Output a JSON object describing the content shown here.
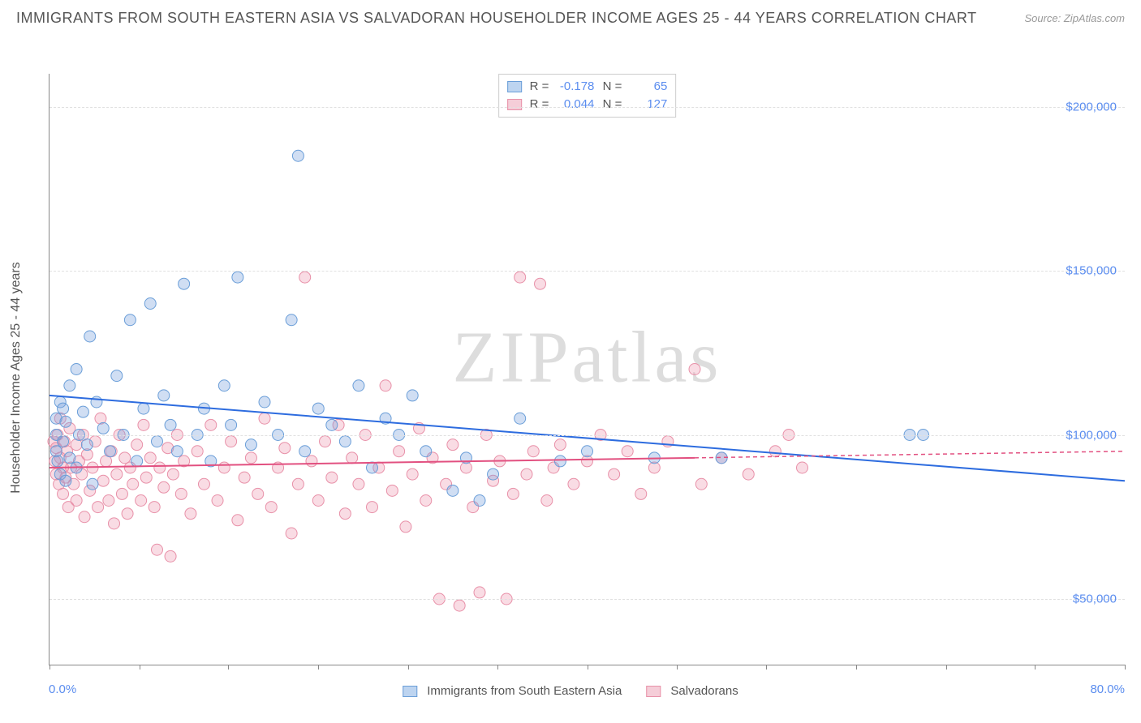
{
  "title": "IMMIGRANTS FROM SOUTH EASTERN ASIA VS SALVADORAN HOUSEHOLDER INCOME AGES 25 - 44 YEARS CORRELATION CHART",
  "source": "Source: ZipAtlas.com",
  "yaxis_title": "Householder Income Ages 25 - 44 years",
  "watermark": "ZIPatlas",
  "chart": {
    "type": "scatter",
    "xlim": [
      0,
      80
    ],
    "ylim": [
      30000,
      210000
    ],
    "x_left_label": "0.0%",
    "x_right_label": "80.0%",
    "ytick_values": [
      50000,
      100000,
      150000,
      200000
    ],
    "ytick_labels": [
      "$50,000",
      "$100,000",
      "$150,000",
      "$200,000"
    ],
    "xtick_positions": [
      0,
      6.7,
      13.3,
      20,
      26.7,
      33.3,
      40,
      46.7,
      53.3,
      60,
      66.7,
      73.3,
      80
    ],
    "grid_color": "#e0e0e0",
    "background_color": "#ffffff",
    "series": [
      {
        "name": "Immigrants from South Eastern Asia",
        "color_fill": "rgba(120,160,220,0.35)",
        "color_stroke": "#6a9ed8",
        "swatch_fill": "#bdd4f0",
        "swatch_border": "#6a9ed8",
        "marker_radius": 7,
        "R": "-0.178",
        "N": "65",
        "regression": {
          "x1": 0,
          "y1": 112000,
          "x2": 80,
          "y2": 86000,
          "color": "#2d6cdf",
          "width": 2
        },
        "points": [
          [
            0.5,
            100000
          ],
          [
            0.5,
            95000
          ],
          [
            0.5,
            105000
          ],
          [
            0.6,
            92000
          ],
          [
            0.8,
            110000
          ],
          [
            0.8,
            88000
          ],
          [
            1.0,
            98000
          ],
          [
            1.0,
            108000
          ],
          [
            1.2,
            86000
          ],
          [
            1.2,
            104000
          ],
          [
            1.5,
            115000
          ],
          [
            1.5,
            93000
          ],
          [
            2.0,
            120000
          ],
          [
            2.0,
            90000
          ],
          [
            2.2,
            100000
          ],
          [
            2.5,
            107000
          ],
          [
            2.8,
            97000
          ],
          [
            3.0,
            130000
          ],
          [
            3.2,
            85000
          ],
          [
            3.5,
            110000
          ],
          [
            4.0,
            102000
          ],
          [
            4.5,
            95000
          ],
          [
            5.0,
            118000
          ],
          [
            5.5,
            100000
          ],
          [
            6.0,
            135000
          ],
          [
            6.5,
            92000
          ],
          [
            7.0,
            108000
          ],
          [
            7.5,
            140000
          ],
          [
            8.0,
            98000
          ],
          [
            8.5,
            112000
          ],
          [
            9.0,
            103000
          ],
          [
            9.5,
            95000
          ],
          [
            10.0,
            146000
          ],
          [
            11.0,
            100000
          ],
          [
            11.5,
            108000
          ],
          [
            12.0,
            92000
          ],
          [
            13.0,
            115000
          ],
          [
            13.5,
            103000
          ],
          [
            14.0,
            148000
          ],
          [
            15.0,
            97000
          ],
          [
            16.0,
            110000
          ],
          [
            17.0,
            100000
          ],
          [
            18.0,
            135000
          ],
          [
            18.5,
            185000
          ],
          [
            19.0,
            95000
          ],
          [
            20.0,
            108000
          ],
          [
            21.0,
            103000
          ],
          [
            22.0,
            98000
          ],
          [
            23.0,
            115000
          ],
          [
            24.0,
            90000
          ],
          [
            25.0,
            105000
          ],
          [
            26.0,
            100000
          ],
          [
            27.0,
            112000
          ],
          [
            28.0,
            95000
          ],
          [
            30.0,
            83000
          ],
          [
            31.0,
            93000
          ],
          [
            32.0,
            80000
          ],
          [
            33.0,
            88000
          ],
          [
            35.0,
            105000
          ],
          [
            38.0,
            92000
          ],
          [
            40.0,
            95000
          ],
          [
            45.0,
            93000
          ],
          [
            50.0,
            93000
          ],
          [
            64.0,
            100000
          ],
          [
            65.0,
            100000
          ]
        ]
      },
      {
        "name": "Salvadorans",
        "color_fill": "rgba(235,140,165,0.30)",
        "color_stroke": "#e890a8",
        "swatch_fill": "#f5cdd8",
        "swatch_border": "#e890a8",
        "marker_radius": 7,
        "R": "0.044",
        "N": "127",
        "regression": {
          "x1": 0,
          "y1": 90000,
          "x2": 48,
          "y2": 93000,
          "color": "#e25080",
          "width": 2,
          "dash_extend_to": 80,
          "dash_y": 95000
        },
        "points": [
          [
            0.3,
            98000
          ],
          [
            0.4,
            92000
          ],
          [
            0.5,
            88000
          ],
          [
            0.5,
            96000
          ],
          [
            0.6,
            100000
          ],
          [
            0.7,
            85000
          ],
          [
            0.8,
            93000
          ],
          [
            0.8,
            105000
          ],
          [
            1.0,
            90000
          ],
          [
            1.0,
            82000
          ],
          [
            1.1,
            98000
          ],
          [
            1.2,
            87000
          ],
          [
            1.3,
            95000
          ],
          [
            1.4,
            78000
          ],
          [
            1.5,
            102000
          ],
          [
            1.6,
            90000
          ],
          [
            1.8,
            85000
          ],
          [
            2.0,
            97000
          ],
          [
            2.0,
            80000
          ],
          [
            2.2,
            92000
          ],
          [
            2.4,
            88000
          ],
          [
            2.5,
            100000
          ],
          [
            2.6,
            75000
          ],
          [
            2.8,
            94000
          ],
          [
            3.0,
            83000
          ],
          [
            3.2,
            90000
          ],
          [
            3.4,
            98000
          ],
          [
            3.6,
            78000
          ],
          [
            3.8,
            105000
          ],
          [
            4.0,
            86000
          ],
          [
            4.2,
            92000
          ],
          [
            4.4,
            80000
          ],
          [
            4.6,
            95000
          ],
          [
            4.8,
            73000
          ],
          [
            5.0,
            88000
          ],
          [
            5.2,
            100000
          ],
          [
            5.4,
            82000
          ],
          [
            5.6,
            93000
          ],
          [
            5.8,
            76000
          ],
          [
            6.0,
            90000
          ],
          [
            6.2,
            85000
          ],
          [
            6.5,
            97000
          ],
          [
            6.8,
            80000
          ],
          [
            7.0,
            103000
          ],
          [
            7.2,
            87000
          ],
          [
            7.5,
            93000
          ],
          [
            7.8,
            78000
          ],
          [
            8.0,
            65000
          ],
          [
            8.2,
            90000
          ],
          [
            8.5,
            84000
          ],
          [
            8.8,
            96000
          ],
          [
            9.0,
            63000
          ],
          [
            9.2,
            88000
          ],
          [
            9.5,
            100000
          ],
          [
            9.8,
            82000
          ],
          [
            10.0,
            92000
          ],
          [
            10.5,
            76000
          ],
          [
            11.0,
            95000
          ],
          [
            11.5,
            85000
          ],
          [
            12.0,
            103000
          ],
          [
            12.5,
            80000
          ],
          [
            13.0,
            90000
          ],
          [
            13.5,
            98000
          ],
          [
            14.0,
            74000
          ],
          [
            14.5,
            87000
          ],
          [
            15.0,
            93000
          ],
          [
            15.5,
            82000
          ],
          [
            16.0,
            105000
          ],
          [
            16.5,
            78000
          ],
          [
            17.0,
            90000
          ],
          [
            17.5,
            96000
          ],
          [
            18.0,
            70000
          ],
          [
            18.5,
            85000
          ],
          [
            19.0,
            148000
          ],
          [
            19.5,
            92000
          ],
          [
            20.0,
            80000
          ],
          [
            20.5,
            98000
          ],
          [
            21.0,
            87000
          ],
          [
            21.5,
            103000
          ],
          [
            22.0,
            76000
          ],
          [
            22.5,
            93000
          ],
          [
            23.0,
            85000
          ],
          [
            23.5,
            100000
          ],
          [
            24.0,
            78000
          ],
          [
            24.5,
            90000
          ],
          [
            25.0,
            115000
          ],
          [
            25.5,
            83000
          ],
          [
            26.0,
            95000
          ],
          [
            26.5,
            72000
          ],
          [
            27.0,
            88000
          ],
          [
            27.5,
            102000
          ],
          [
            28.0,
            80000
          ],
          [
            28.5,
            93000
          ],
          [
            29.0,
            50000
          ],
          [
            29.5,
            85000
          ],
          [
            30.0,
            97000
          ],
          [
            30.5,
            48000
          ],
          [
            31.0,
            90000
          ],
          [
            31.5,
            78000
          ],
          [
            32.0,
            52000
          ],
          [
            32.5,
            100000
          ],
          [
            33.0,
            86000
          ],
          [
            33.5,
            92000
          ],
          [
            34.0,
            50000
          ],
          [
            34.5,
            82000
          ],
          [
            35.0,
            148000
          ],
          [
            35.5,
            88000
          ],
          [
            36.0,
            95000
          ],
          [
            36.5,
            146000
          ],
          [
            37.0,
            80000
          ],
          [
            37.5,
            90000
          ],
          [
            38.0,
            97000
          ],
          [
            39.0,
            85000
          ],
          [
            40.0,
            92000
          ],
          [
            41.0,
            100000
          ],
          [
            42.0,
            88000
          ],
          [
            43.0,
            95000
          ],
          [
            44.0,
            82000
          ],
          [
            45.0,
            90000
          ],
          [
            46.0,
            98000
          ],
          [
            48.0,
            120000
          ],
          [
            48.5,
            85000
          ],
          [
            50.0,
            93000
          ],
          [
            52.0,
            88000
          ],
          [
            54.0,
            95000
          ],
          [
            55.0,
            100000
          ],
          [
            56.0,
            90000
          ]
        ]
      }
    ]
  },
  "legend_bottom": [
    {
      "label": "Immigrants from South Eastern Asia",
      "swatch_fill": "#bdd4f0",
      "swatch_border": "#6a9ed8"
    },
    {
      "label": "Salvadorans",
      "swatch_fill": "#f5cdd8",
      "swatch_border": "#e890a8"
    }
  ]
}
